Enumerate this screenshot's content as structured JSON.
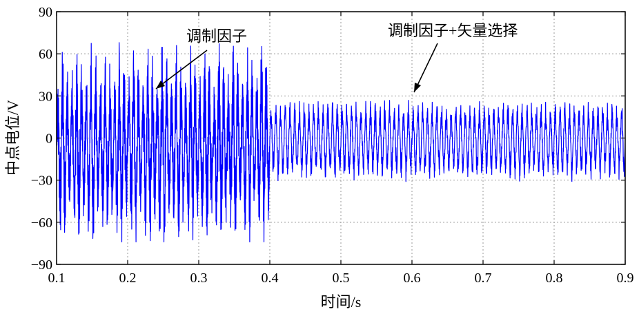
{
  "chart_data": {
    "type": "line",
    "title": "",
    "xlabel": "时间/s",
    "ylabel": "中点电位/V",
    "xlim": [
      0.1,
      0.9
    ],
    "ylim": [
      -90,
      90
    ],
    "x_ticks": [
      0.1,
      0.2,
      0.3,
      0.4,
      0.5,
      0.6,
      0.7,
      0.8,
      0.9
    ],
    "y_ticks": [
      -90,
      -60,
      -30,
      0,
      30,
      60,
      90
    ],
    "x_tick_labels": [
      "0.1",
      "0.2",
      "0.3",
      "0.4",
      "0.5",
      "0.6",
      "0.7",
      "0.8",
      "0.9"
    ],
    "y_tick_labels": [
      "−90",
      "−60",
      "−30",
      "0",
      "30",
      "60",
      "90"
    ],
    "grid": true,
    "line_color": "#0000ff",
    "series": [
      {
        "segments": [
          {
            "x_start": 0.1,
            "x_end": 0.4,
            "peak_max": 68,
            "peak_min": -74
          },
          {
            "x_start": 0.4,
            "x_end": 0.9,
            "peak_max": 28,
            "peak_min": -31
          }
        ]
      }
    ],
    "annotations": [
      {
        "text": "调制因子",
        "arrow_to": [
          0.235,
          33
        ]
      },
      {
        "text": "调制因子+矢量选择",
        "arrow_to": [
          0.6,
          30
        ]
      }
    ]
  }
}
